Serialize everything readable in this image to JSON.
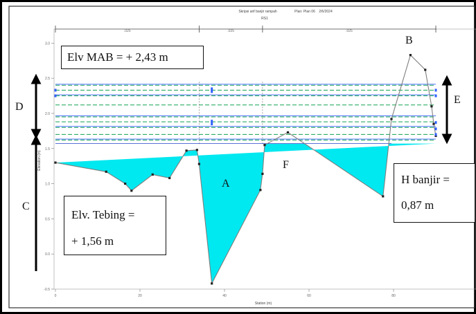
{
  "chart_data": {
    "type": "area",
    "title": "Skripsi arif banjir rampah",
    "plan": "Plan: Plan 06",
    "date": "2/6/2024",
    "station_id": "RS1",
    "xlabel": "Station (m)",
    "ylabel": "Elevation (m)",
    "xlim": [
      0,
      100
    ],
    "ylim": [
      -0.5,
      3.2
    ],
    "x_ticks": [
      0,
      20,
      40,
      60,
      80
    ],
    "y_ticks": [
      -0.5,
      0.0,
      0.5,
      1.0,
      1.5,
      2.0,
      2.5,
      3.0
    ],
    "x_tick_labels": [
      "0",
      "20",
      "40",
      "60",
      "80"
    ],
    "y_tick_labels": [
      "-0.5",
      "0.0",
      "0.5",
      "1.0",
      "1.5",
      "2.0",
      "2.5",
      "3.0"
    ],
    "reach_labels": [
      ".025",
      ".025",
      ".025"
    ],
    "ground_profile": {
      "x": [
        0,
        12,
        16.5,
        18,
        23,
        27,
        31,
        33.5,
        34,
        37,
        48.5,
        49,
        49.5,
        55,
        77.5,
        79.5,
        84,
        87.5,
        89,
        89.5,
        90
      ],
      "y": [
        1.3,
        1.17,
        1.0,
        0.9,
        1.13,
        1.08,
        1.47,
        1.48,
        1.28,
        -0.42,
        0.91,
        1.14,
        1.55,
        1.73,
        0.82,
        1.92,
        2.83,
        2.62,
        2.1,
        1.85,
        1.68
      ]
    },
    "water_surface": 1.57,
    "water_lines": [
      2.4,
      2.33,
      2.25,
      2.12,
      1.95,
      1.88,
      1.8,
      1.7,
      1.62
    ],
    "bank_markers": [
      {
        "x": 37,
        "y": 2.33
      },
      {
        "x": 37,
        "y": 1.87
      }
    ],
    "dividers_x": [
      34,
      49
    ],
    "colors": {
      "water": "#00e8f0",
      "ground": "#7f7f7f",
      "blue_line": "#3060ff",
      "green_line": "#10a050"
    }
  },
  "annotations": {
    "elv_mab": "Elv MAB = + 2,43 m",
    "elv_tebing_line1": "Elv. Tebing =",
    "elv_tebing_line2": "+ 1,56 m",
    "h_banjir_line1": "H banjir =",
    "h_banjir_line2": "0,87 m",
    "label_a": "A",
    "label_b": "B",
    "label_c": "C",
    "label_d": "D",
    "label_e": "E",
    "label_f": "F"
  }
}
